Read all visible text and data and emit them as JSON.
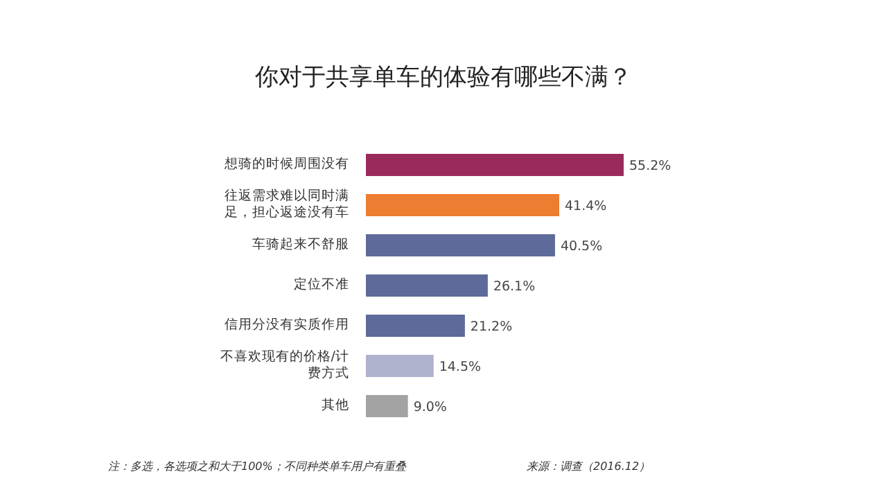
{
  "chart_data": {
    "type": "bar",
    "orientation": "horizontal",
    "title": "你对于共享单车的体验有哪些不满？",
    "categories": [
      "想骑的时候周围没有",
      "往返需求难以同时满足，担心返途没有车",
      "车骑起来不舒服",
      "定位不准",
      "信用分没有实质作用",
      "不喜欢现有的价格/计费方式",
      "其他"
    ],
    "values": [
      55.2,
      41.4,
      40.5,
      26.1,
      21.2,
      14.5,
      9.0
    ],
    "value_labels": [
      "55.2%",
      "41.4%",
      "40.5%",
      "26.1%",
      "21.2%",
      "14.5%",
      "9.0%"
    ],
    "colors": [
      "#9b2a5c",
      "#ed7d31",
      "#5d6a9a",
      "#5d6a9a",
      "#5d6a9a",
      "#aeb2cc",
      "#a3a3a3"
    ],
    "annotations": [
      "注：多选，各选项之和大于100%；不同种类单车用户有重叠",
      "来源：调查（2016.12）"
    ]
  }
}
